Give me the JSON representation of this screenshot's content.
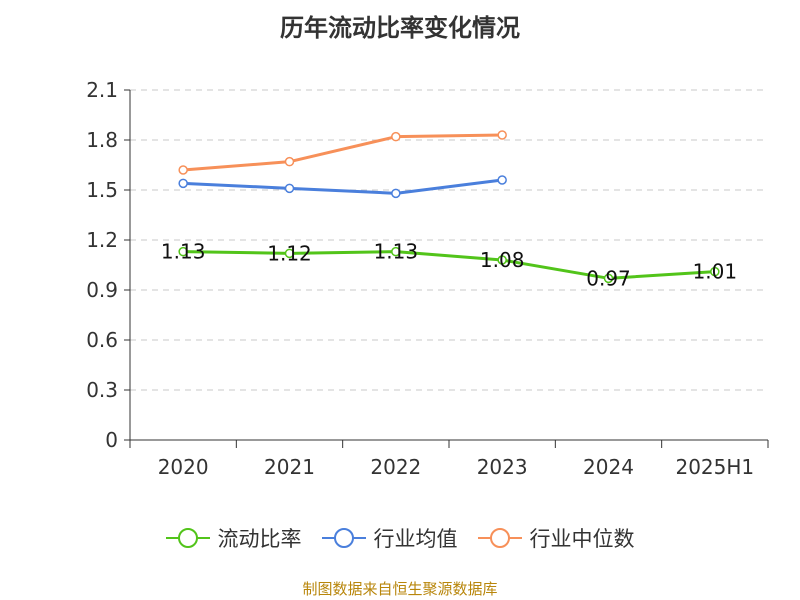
{
  "title": "历年流动比率变化情况",
  "source": "制图数据来自恒生聚源数据库",
  "chart_data": {
    "type": "line",
    "categories": [
      "2020",
      "2021",
      "2022",
      "2023",
      "2024",
      "2025H1"
    ],
    "ylim": [
      0,
      2.1
    ],
    "yticks": [
      "0",
      "0.3",
      "0.6",
      "0.9",
      "1.2",
      "1.5",
      "1.8",
      "2.1"
    ],
    "grid": true,
    "legend_position": "bottom",
    "series": [
      {
        "name": "流动比率",
        "color": "#52c41a",
        "values": [
          1.13,
          1.12,
          1.13,
          1.08,
          0.97,
          1.01
        ],
        "labels": [
          "1.13",
          "1.12",
          "1.13",
          "1.08",
          "0.97",
          "1.01"
        ]
      },
      {
        "name": "行业均值",
        "color": "#4a7fdc",
        "values": [
          1.54,
          1.51,
          1.48,
          1.56,
          null,
          null
        ]
      },
      {
        "name": "行业中位数",
        "color": "#f79059",
        "values": [
          1.62,
          1.67,
          1.82,
          1.83,
          null,
          null
        ]
      }
    ]
  }
}
